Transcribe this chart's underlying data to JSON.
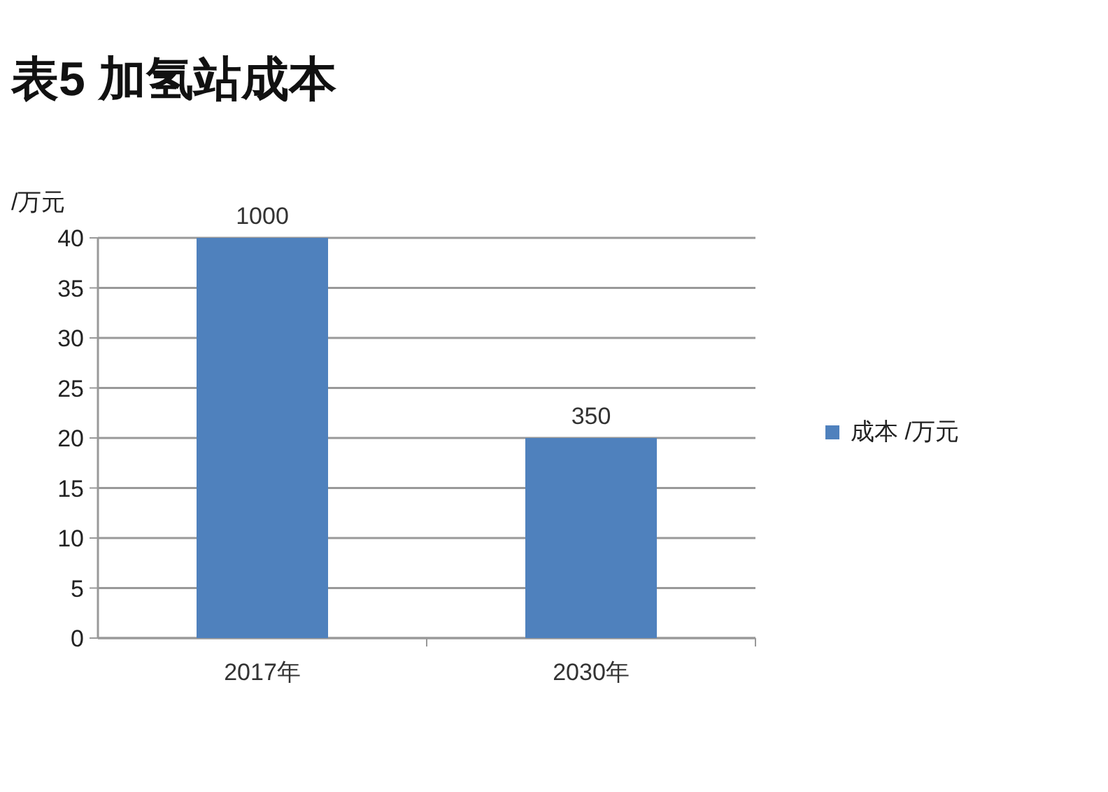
{
  "chart_data": {
    "type": "bar",
    "title": "表5 加氢站成本",
    "ylabel": "/万元",
    "categories": [
      "2017年",
      "2030年"
    ],
    "series": [
      {
        "name": "成本 /万元",
        "color": "#4f81bd",
        "values": [
          40,
          20
        ]
      }
    ],
    "annotations": [
      {
        "text": "1000",
        "x": "2017年",
        "y": 40
      },
      {
        "text": "350",
        "x": "2030年",
        "y": 20
      }
    ],
    "ylim": [
      0,
      40
    ],
    "yticks": [
      0,
      5,
      10,
      15,
      20,
      25,
      30,
      35,
      40
    ],
    "grid": "y",
    "legend": "right"
  }
}
